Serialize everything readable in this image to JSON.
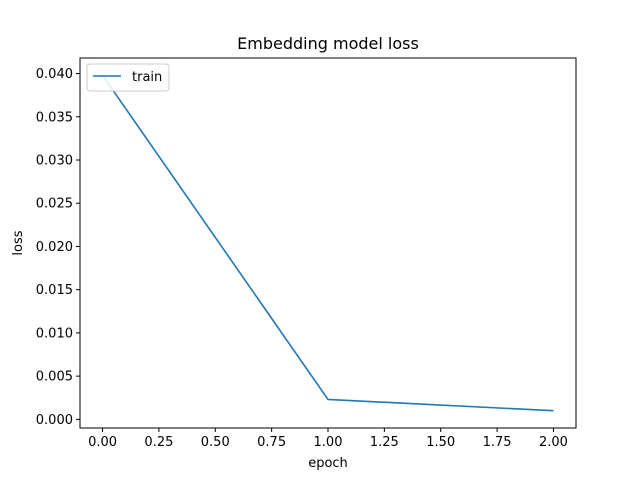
{
  "chart_data": {
    "type": "line",
    "title": "Embedding model loss",
    "xlabel": "epoch",
    "ylabel": "loss",
    "xlim": [
      -0.1,
      2.1
    ],
    "ylim": [
      -0.001,
      0.0418
    ],
    "x_ticks": [
      0.0,
      0.25,
      0.5,
      0.75,
      1.0,
      1.25,
      1.5,
      1.75,
      2.0
    ],
    "x_tick_labels": [
      "0.00",
      "0.25",
      "0.50",
      "0.75",
      "1.00",
      "1.25",
      "1.50",
      "1.75",
      "2.00"
    ],
    "y_ticks": [
      0.0,
      0.005,
      0.01,
      0.015,
      0.02,
      0.025,
      0.03,
      0.035,
      0.04
    ],
    "y_tick_labels": [
      "0.000",
      "0.005",
      "0.010",
      "0.015",
      "0.020",
      "0.025",
      "0.030",
      "0.035",
      "0.040"
    ],
    "grid": false,
    "legend_position": "upper left",
    "series": [
      {
        "name": "train",
        "color": "#1f77b4",
        "x": [
          0,
          1,
          2
        ],
        "y": [
          0.0398,
          0.0023,
          0.001
        ]
      }
    ]
  }
}
